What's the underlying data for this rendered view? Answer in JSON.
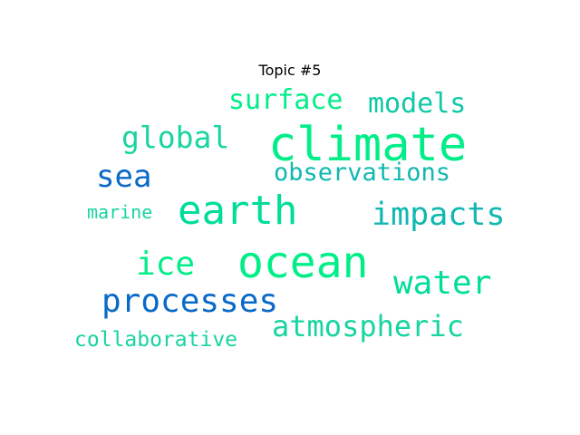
{
  "title": "Topic #5",
  "words": [
    {
      "text": "climate",
      "color": "#00ee88"
    },
    {
      "text": "ocean",
      "color": "#00ee88"
    },
    {
      "text": "earth",
      "color": "#00dd99"
    },
    {
      "text": "processes",
      "color": "#0a6ac8"
    },
    {
      "text": "water",
      "color": "#00dd99"
    },
    {
      "text": "ice",
      "color": "#00ee88"
    },
    {
      "text": "impacts",
      "color": "#10b8b0"
    },
    {
      "text": "atmospheric",
      "color": "#18d4a0"
    },
    {
      "text": "sea",
      "color": "#0a6ac8"
    },
    {
      "text": "global",
      "color": "#18d4a0"
    },
    {
      "text": "surface",
      "color": "#00ee88"
    },
    {
      "text": "models",
      "color": "#10c8a8"
    },
    {
      "text": "observations",
      "color": "#10b8b0"
    },
    {
      "text": "collaborative",
      "color": "#18d4a0"
    },
    {
      "text": "marine",
      "color": "#18d4a0"
    }
  ]
}
